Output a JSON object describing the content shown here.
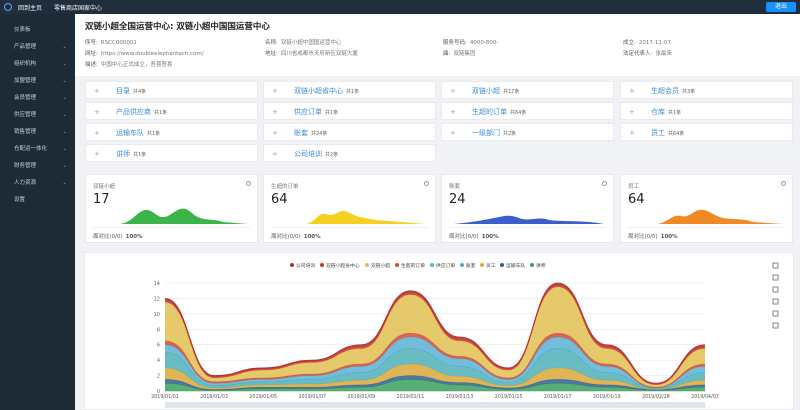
{
  "topbar": {
    "home": "回到主页",
    "store": "零售商店国家中心",
    "logout": "退出"
  },
  "sidebar": [
    "仪表板",
    "产品管理",
    "组织机构",
    "加盟管理",
    "会员管理",
    "供应管理",
    "销售管理",
    "仓配运一体化",
    "财务管理",
    "人力资源",
    "设置"
  ],
  "header": {
    "title": "双链小超全国运营中心: 双链小超中国国运营中心",
    "fields": [
      {
        "label": "序号:",
        "value": "RSCC000001"
      },
      {
        "label": "名称:",
        "value": "双链小超中国国运营中心"
      },
      {
        "label": "服务号码:",
        "value": "4000-800-"
      },
      {
        "label": "成立:",
        "value": "2017-11-07"
      },
      {
        "label": "网址:",
        "value": "https://www.doubleelephantech.com/"
      },
      {
        "label": "地址:",
        "value": "四川省成都市天府新区双链大厦"
      },
      {
        "label": "曲:",
        "value": "双链集团"
      },
      {
        "label": "法定代表人:",
        "value": "张最来"
      },
      {
        "label": "描述:",
        "value": "中国中心正式成立，吾喜吾喜"
      }
    ]
  },
  "links": [
    [
      {
        "name": "目录",
        "count": "共4条"
      },
      {
        "name": "产品供应商",
        "count": "共1条"
      },
      {
        "name": "运输车队",
        "count": "共1条"
      },
      {
        "name": "讲师",
        "count": "共1条"
      }
    ],
    [
      {
        "name": "双链小超省中心",
        "count": "共1条"
      },
      {
        "name": "供应订单",
        "count": "共1条"
      },
      {
        "name": "账套",
        "count": "共24条"
      },
      {
        "name": "公司培训",
        "count": "共2条"
      }
    ],
    [
      {
        "name": "双链小超",
        "count": "共17条"
      },
      {
        "name": "生超的订单",
        "count": "共64条"
      },
      {
        "name": "一级部门",
        "count": "共2条"
      }
    ],
    [
      {
        "name": "生超会员",
        "count": "共3条"
      },
      {
        "name": "仓库",
        "count": "共1条"
      },
      {
        "name": "员工",
        "count": "共64条"
      }
    ]
  ],
  "stats": [
    {
      "title": "双链小超",
      "value": "17",
      "compare": "周对比(0/0)",
      "pct": "100%",
      "color": "#3bb54a"
    },
    {
      "title": "生超的订单",
      "value": "64",
      "compare": "周对比(0/0)",
      "pct": "100%",
      "color": "#f5d020"
    },
    {
      "title": "账套",
      "value": "24",
      "compare": "周对比(0/0)",
      "pct": "100%",
      "color": "#3a5fcd"
    },
    {
      "title": "员工",
      "value": "64",
      "compare": "周对比(0/0)",
      "pct": "100%",
      "color": "#f08a24"
    }
  ],
  "chart_data": {
    "type": "area",
    "stacked": true,
    "x": [
      "2019/01/01",
      "2019/01/03",
      "2019/01/05",
      "2019/01/07",
      "2019/01/09",
      "2019/01/11",
      "2019/01/13",
      "2019/01/15",
      "2019/01/17",
      "2019/01/19",
      "2019/02/28",
      "2019/04/03"
    ],
    "ylim": [
      0,
      14
    ],
    "yticks": [
      0,
      2,
      4,
      6,
      8,
      10,
      12,
      14
    ],
    "grid": true,
    "series": [
      {
        "name": "讲师",
        "color": "#3ba15a",
        "values": [
          1,
          0.1,
          0.3,
          0.3,
          0.5,
          1.5,
          0.8,
          0.2,
          1,
          0.5,
          0.1,
          0.5
        ]
      },
      {
        "name": "运输车队",
        "color": "#2f5f9a",
        "values": [
          0.5,
          0.1,
          0.2,
          0.2,
          0.3,
          0.5,
          0.3,
          0.2,
          0.5,
          0.3,
          0.1,
          0.3
        ]
      },
      {
        "name": "员工",
        "color": "#d9a93a",
        "values": [
          1.5,
          0.2,
          0.3,
          0.4,
          0.6,
          1.5,
          0.8,
          0.3,
          1.5,
          0.6,
          0,
          0.6
        ]
      },
      {
        "name": "账套",
        "color": "#4fb0b8",
        "values": [
          2,
          0.3,
          0.4,
          0.6,
          1,
          2,
          1.3,
          0.4,
          2.5,
          1,
          0.1,
          1
        ]
      },
      {
        "name": "供应订单",
        "color": "#5ab1d5",
        "values": [
          1,
          0.3,
          0.3,
          0.5,
          0.8,
          1.5,
          1,
          0.4,
          1.5,
          0.8,
          0.1,
          0.8
        ]
      },
      {
        "name": "生超的订单",
        "color": "#d14a3a",
        "values": [
          0.5,
          0.2,
          0.2,
          0.2,
          0.3,
          0.5,
          0.3,
          0.2,
          0.5,
          0.3,
          0.1,
          0.3
        ]
      },
      {
        "name": "双链小超",
        "color": "#e0c050",
        "values": [
          5,
          0.5,
          1,
          1.5,
          2,
          5,
          2,
          1,
          6,
          2,
          0.3,
          2
        ]
      },
      {
        "name": "双链小超省中心",
        "color": "#c23531",
        "values": [
          0.3,
          0.2,
          0.2,
          0.2,
          0.3,
          0.3,
          0.3,
          0.2,
          0.3,
          0.3,
          0.2,
          0.3
        ]
      },
      {
        "name": "公司培训",
        "color": "#b03030",
        "values": [
          0.2,
          0.1,
          0.1,
          0.1,
          0.2,
          0.2,
          0.2,
          0.1,
          0.2,
          0.2,
          0,
          0.2
        ]
      }
    ]
  }
}
